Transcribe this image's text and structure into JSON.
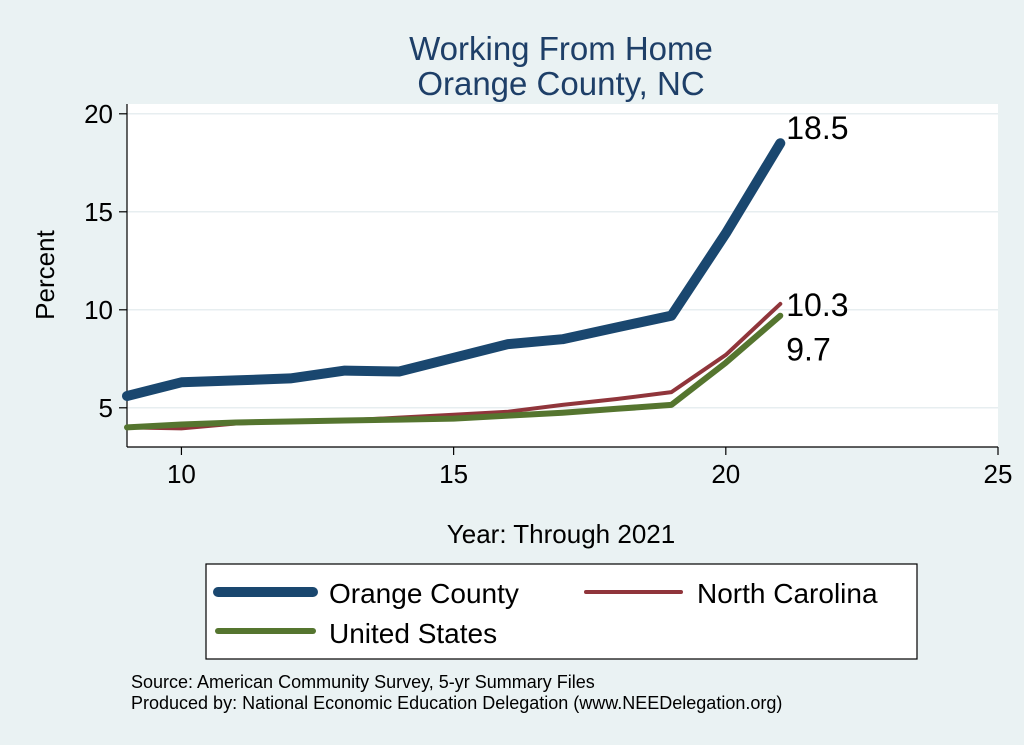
{
  "chart_data": {
    "type": "line",
    "title": [
      "Working From Home",
      "Orange County, NC"
    ],
    "xlabel": "Year: Through 2021",
    "ylabel": "Percent",
    "xlim": [
      9,
      25
    ],
    "ylim": [
      3,
      20.5
    ],
    "xticks": [
      10,
      15,
      20,
      25
    ],
    "yticks": [
      5,
      10,
      15,
      20
    ],
    "grid": true,
    "series": [
      {
        "name": "Orange County",
        "color": "#1a476f",
        "emphasis": "thick",
        "x": [
          9,
          10,
          11,
          12,
          13,
          14,
          15,
          16,
          17,
          18,
          19,
          20,
          21
        ],
        "y": [
          5.6,
          6.3,
          6.4,
          6.5,
          6.9,
          6.85,
          7.55,
          8.25,
          8.5,
          9.1,
          9.7,
          13.9,
          18.5
        ],
        "end_label": "18.5"
      },
      {
        "name": "North Carolina",
        "color": "#90353b",
        "emphasis": "thin",
        "x": [
          9,
          10,
          11,
          12,
          13,
          14,
          15,
          16,
          17,
          18,
          19,
          20,
          21
        ],
        "y": [
          4.0,
          3.95,
          4.2,
          4.3,
          4.35,
          4.5,
          4.65,
          4.8,
          5.15,
          5.45,
          5.8,
          7.7,
          10.3
        ],
        "end_label": "10.3"
      },
      {
        "name": "United States",
        "color": "#55752f",
        "emphasis": "medium",
        "x": [
          9,
          10,
          11,
          12,
          13,
          14,
          15,
          16,
          17,
          18,
          19,
          20,
          21
        ],
        "y": [
          4.0,
          4.15,
          4.25,
          4.3,
          4.35,
          4.4,
          4.45,
          4.6,
          4.75,
          4.95,
          5.15,
          7.3,
          9.7
        ],
        "end_label": "9.7"
      }
    ],
    "legend": {
      "placement": "bottom"
    },
    "notes": [
      "Source: American Community Survey, 5-yr Summary Files",
      "Produced by: National Economic Education Delegation (www.NEEDelegation.org)"
    ]
  }
}
